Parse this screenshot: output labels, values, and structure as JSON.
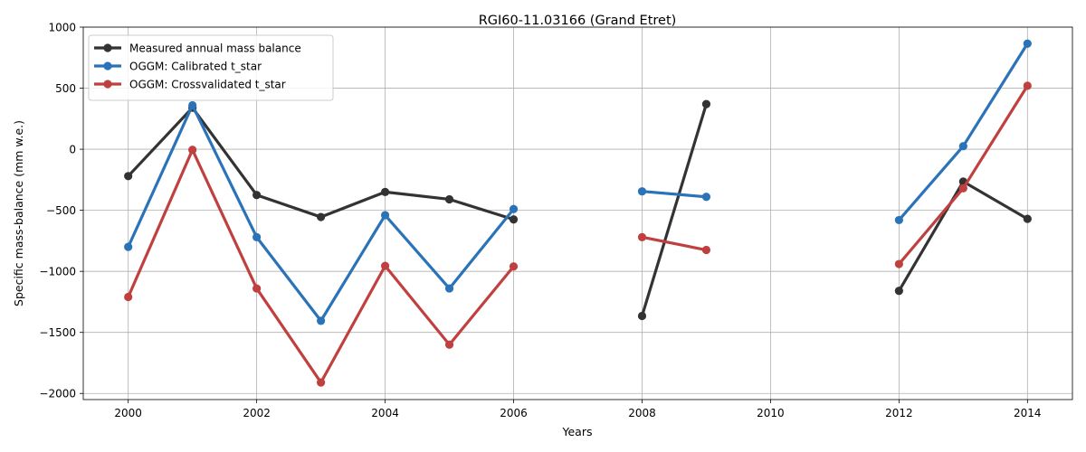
{
  "chart_data": {
    "type": "line",
    "title": "RGI60-11.03166 (Grand Etret)",
    "xlabel": "Years",
    "ylabel": "Specific mass-balance (mm w.e.)",
    "xlim": [
      1999.3,
      2014.7
    ],
    "ylim": [
      -2050,
      1000
    ],
    "xticks": [
      2000,
      2002,
      2004,
      2006,
      2008,
      2010,
      2012,
      2014
    ],
    "yticks": [
      1000,
      500,
      0,
      -500,
      -1000,
      -1500,
      -2000
    ],
    "xtick_labels": [
      "2000",
      "2002",
      "2004",
      "2006",
      "2008",
      "2010",
      "2012",
      "2014"
    ],
    "ytick_labels": [
      "1000",
      "500",
      "0",
      "−500",
      "−1000",
      "−1500",
      "−2000"
    ],
    "grid": true,
    "legend_position": "top-left",
    "series": [
      {
        "name": "Measured annual mass balance",
        "color": "#333333",
        "segments": [
          {
            "x": [
              2000,
              2001,
              2002,
              2003,
              2004,
              2005,
              2006
            ],
            "y": [
              -220,
              340,
              -375,
              -555,
              -350,
              -410,
              -575
            ]
          },
          {
            "x": [
              2008,
              2009
            ],
            "y": [
              -1365,
              370
            ]
          },
          {
            "x": [
              2012,
              2013,
              2014
            ],
            "y": [
              -1160,
              -265,
              -570
            ]
          }
        ]
      },
      {
        "name": "OGGM: Calibrated t_star",
        "color": "#2a73b8",
        "segments": [
          {
            "x": [
              2000,
              2001,
              2002,
              2003,
              2004,
              2005,
              2006
            ],
            "y": [
              -800,
              360,
              -720,
              -1405,
              -540,
              -1140,
              -490
            ]
          },
          {
            "x": [
              2008,
              2009
            ],
            "y": [
              -345,
              -390
            ]
          },
          {
            "x": [
              2012,
              2013,
              2014
            ],
            "y": [
              -580,
              25,
              865
            ]
          }
        ]
      },
      {
        "name": "OGGM: Crossvalidated t_star",
        "color": "#c0403f",
        "segments": [
          {
            "x": [
              2000,
              2001,
              2002,
              2003,
              2004,
              2005,
              2006
            ],
            "y": [
              -1210,
              -5,
              -1140,
              -1910,
              -955,
              -1600,
              -960
            ]
          },
          {
            "x": [
              2008,
              2009
            ],
            "y": [
              -720,
              -825
            ]
          },
          {
            "x": [
              2012,
              2013,
              2014
            ],
            "y": [
              -940,
              -320,
              520
            ]
          }
        ]
      }
    ]
  }
}
